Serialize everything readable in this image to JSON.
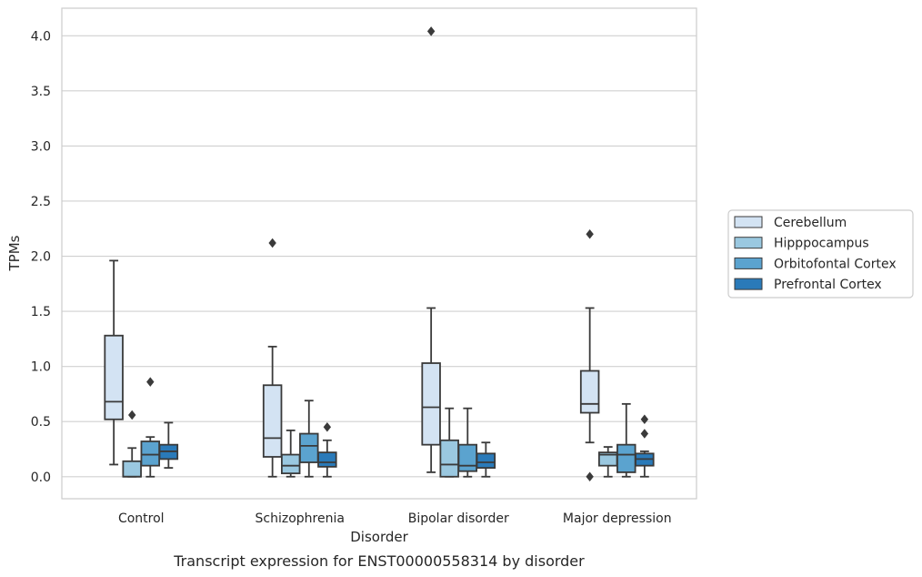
{
  "chart_data": {
    "type": "box",
    "title": "",
    "caption": "Transcript expression for ENST00000558314 by disorder",
    "xlabel": "Disorder",
    "ylabel": "TPMs",
    "ylim": [
      -0.2,
      4.25
    ],
    "yticks": [
      "0.0",
      "0.5",
      "1.0",
      "1.5",
      "2.0",
      "2.5",
      "3.0",
      "3.5",
      "4.0"
    ],
    "categories": [
      "Control",
      "Schizophrenia",
      "Bipolar disorder",
      "Major depression"
    ],
    "grid": true,
    "legend_position": "right",
    "series": [
      {
        "name": "Cerebellum",
        "color": "#d3e3f3",
        "boxes": [
          {
            "whislo": 0.11,
            "q1": 0.52,
            "med": 0.68,
            "q3": 1.28,
            "whishi": 1.96,
            "fliers": []
          },
          {
            "whislo": 0.0,
            "q1": 0.18,
            "med": 0.35,
            "q3": 0.83,
            "whishi": 1.18,
            "fliers": [
              2.12
            ]
          },
          {
            "whislo": 0.04,
            "q1": 0.29,
            "med": 0.63,
            "q3": 1.03,
            "whishi": 1.53,
            "fliers": [
              4.04
            ]
          },
          {
            "whislo": 0.31,
            "q1": 0.58,
            "med": 0.66,
            "q3": 0.96,
            "whishi": 1.53,
            "fliers": [
              2.2,
              0.0
            ]
          }
        ]
      },
      {
        "name": "Hipppocampus",
        "color": "#9ac8e0",
        "boxes": [
          {
            "whislo": 0.0,
            "q1": 0.0,
            "med": 0.0,
            "q3": 0.14,
            "whishi": 0.26,
            "fliers": [
              0.56
            ]
          },
          {
            "whislo": 0.0,
            "q1": 0.03,
            "med": 0.1,
            "q3": 0.2,
            "whishi": 0.42,
            "fliers": []
          },
          {
            "whislo": 0.0,
            "q1": 0.0,
            "med": 0.11,
            "q3": 0.33,
            "whishi": 0.62,
            "fliers": []
          },
          {
            "whislo": 0.0,
            "q1": 0.1,
            "med": 0.2,
            "q3": 0.22,
            "whishi": 0.27,
            "fliers": []
          }
        ]
      },
      {
        "name": "Orbitofontal Cortex",
        "color": "#5ba3cf",
        "boxes": [
          {
            "whislo": 0.0,
            "q1": 0.1,
            "med": 0.2,
            "q3": 0.32,
            "whishi": 0.36,
            "fliers": [
              0.86
            ]
          },
          {
            "whislo": 0.0,
            "q1": 0.13,
            "med": 0.28,
            "q3": 0.39,
            "whishi": 0.69,
            "fliers": []
          },
          {
            "whislo": 0.0,
            "q1": 0.05,
            "med": 0.1,
            "q3": 0.29,
            "whishi": 0.62,
            "fliers": []
          },
          {
            "whislo": 0.0,
            "q1": 0.04,
            "med": 0.2,
            "q3": 0.29,
            "whishi": 0.66,
            "fliers": []
          }
        ]
      },
      {
        "name": "Prefrontal Cortex",
        "color": "#2a7ab9",
        "boxes": [
          {
            "whislo": 0.08,
            "q1": 0.16,
            "med": 0.23,
            "q3": 0.29,
            "whishi": 0.49,
            "fliers": []
          },
          {
            "whislo": 0.0,
            "q1": 0.09,
            "med": 0.13,
            "q3": 0.22,
            "whishi": 0.33,
            "fliers": [
              0.45
            ]
          },
          {
            "whislo": 0.0,
            "q1": 0.08,
            "med": 0.13,
            "q3": 0.21,
            "whishi": 0.31,
            "fliers": []
          },
          {
            "whislo": 0.0,
            "q1": 0.1,
            "med": 0.16,
            "q3": 0.21,
            "whishi": 0.23,
            "fliers": [
              0.52,
              0.39
            ]
          }
        ]
      }
    ]
  }
}
